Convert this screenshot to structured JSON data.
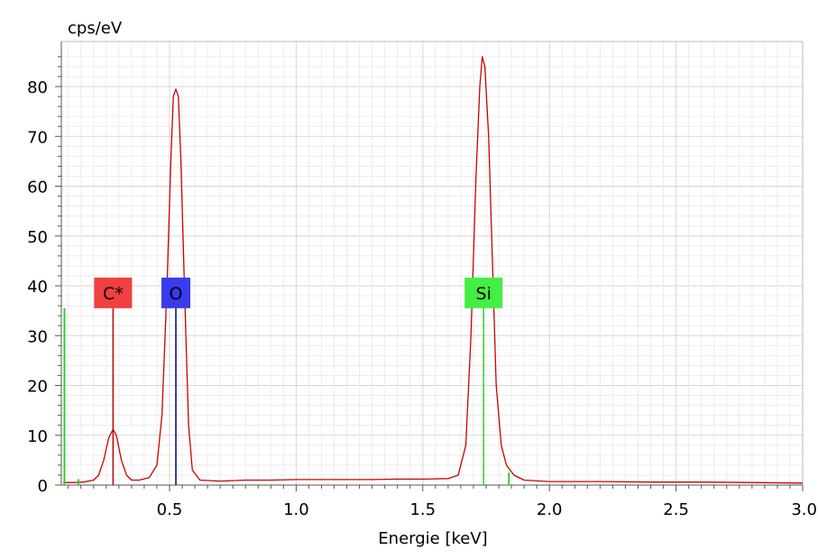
{
  "chart_data": {
    "type": "line",
    "title": "",
    "ylabel": "cps/eV",
    "xlabel": "Energie [keV]",
    "xlim": [
      0.08,
      3.0
    ],
    "ylim": [
      0,
      88
    ],
    "grid": true,
    "x_ticks": [
      0.5,
      1.0,
      1.5,
      2.0,
      2.5,
      3.0
    ],
    "x_tick_labels": [
      "0.5",
      "1.0",
      "1.5",
      "2.0",
      "2.5",
      "3.0"
    ],
    "y_ticks": [
      0,
      10,
      20,
      30,
      40,
      50,
      60,
      70,
      80
    ],
    "y_tick_labels": [
      "0",
      "10",
      "20",
      "30",
      "40",
      "50",
      "60",
      "70",
      "80"
    ],
    "series": [
      {
        "color": "#cc0000",
        "points": [
          [
            0.08,
            0.5
          ],
          [
            0.12,
            0.5
          ],
          [
            0.16,
            0.6
          ],
          [
            0.2,
            1.0
          ],
          [
            0.22,
            2.0
          ],
          [
            0.24,
            5.0
          ],
          [
            0.26,
            9.5
          ],
          [
            0.277,
            11.2
          ],
          [
            0.29,
            10.0
          ],
          [
            0.31,
            5.0
          ],
          [
            0.33,
            2.0
          ],
          [
            0.35,
            1.0
          ],
          [
            0.38,
            1.0
          ],
          [
            0.42,
            1.5
          ],
          [
            0.45,
            4.0
          ],
          [
            0.47,
            14.0
          ],
          [
            0.49,
            40.0
          ],
          [
            0.505,
            65.0
          ],
          [
            0.515,
            78.0
          ],
          [
            0.525,
            79.5
          ],
          [
            0.535,
            78.0
          ],
          [
            0.545,
            65.0
          ],
          [
            0.56,
            38.0
          ],
          [
            0.575,
            12.0
          ],
          [
            0.59,
            3.0
          ],
          [
            0.62,
            1.0
          ],
          [
            0.7,
            0.8
          ],
          [
            0.8,
            1.0
          ],
          [
            0.9,
            1.0
          ],
          [
            1.0,
            1.1
          ],
          [
            1.1,
            1.1
          ],
          [
            1.2,
            1.1
          ],
          [
            1.3,
            1.1
          ],
          [
            1.4,
            1.2
          ],
          [
            1.5,
            1.2
          ],
          [
            1.6,
            1.3
          ],
          [
            1.64,
            2.0
          ],
          [
            1.67,
            8.0
          ],
          [
            1.69,
            30.0
          ],
          [
            1.71,
            62.0
          ],
          [
            1.725,
            80.0
          ],
          [
            1.735,
            86.0
          ],
          [
            1.745,
            84.0
          ],
          [
            1.76,
            70.0
          ],
          [
            1.775,
            45.0
          ],
          [
            1.79,
            20.0
          ],
          [
            1.81,
            8.0
          ],
          [
            1.83,
            4.0
          ],
          [
            1.86,
            2.0
          ],
          [
            1.9,
            1.0
          ],
          [
            2.0,
            0.7
          ],
          [
            2.2,
            0.7
          ],
          [
            2.4,
            0.6
          ],
          [
            2.6,
            0.6
          ],
          [
            2.8,
            0.5
          ],
          [
            3.0,
            0.4
          ]
        ]
      }
    ],
    "markers": [
      {
        "label": "C*",
        "energy": 0.277,
        "height": 35.5,
        "box_color": "#f04040",
        "line_color": "#c00000"
      },
      {
        "label": "O",
        "energy": 0.525,
        "height": 35.5,
        "box_color": "#3a3aee",
        "line_color": "#000080"
      },
      {
        "label": "Si",
        "energy": 1.74,
        "height": 35.5,
        "box_color": "#44ee44",
        "line_color": "#33cc33"
      }
    ],
    "extra_lines": [
      {
        "energy": 0.085,
        "height": 35.5,
        "color": "#33cc33"
      },
      {
        "energy": 0.14,
        "height": 1.2,
        "color": "#33cc33"
      },
      {
        "energy": 1.84,
        "height": 2.5,
        "color": "#33cc33"
      }
    ]
  }
}
